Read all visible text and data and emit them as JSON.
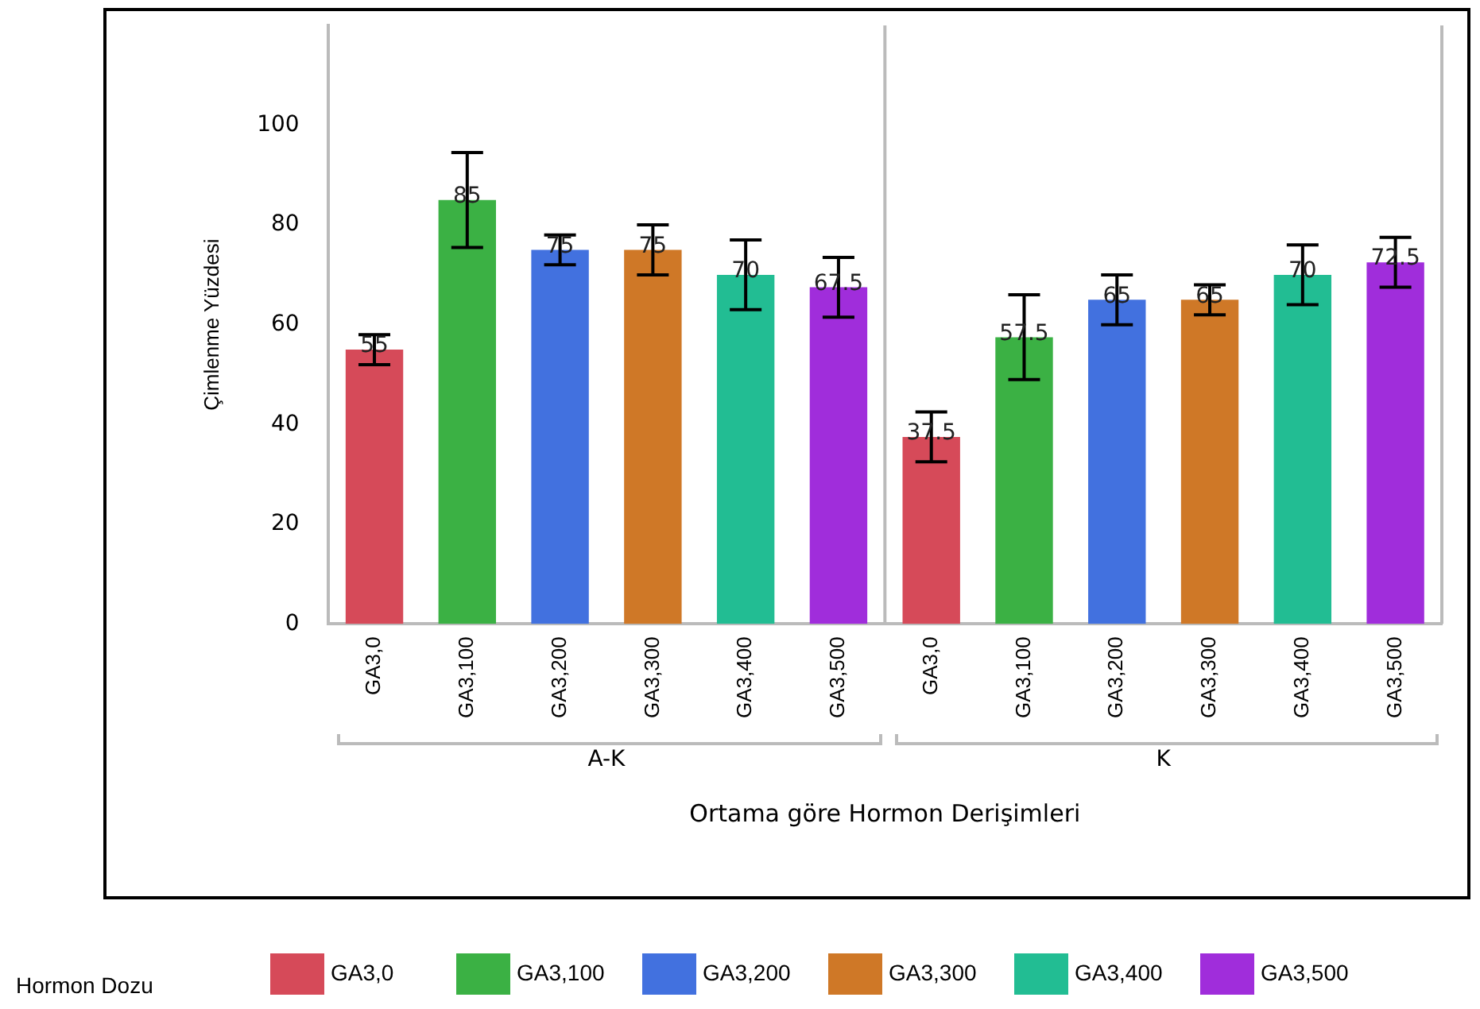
{
  "chart_data": {
    "type": "bar",
    "xlabel": "Ortama göre Hormon Derişimleri",
    "ylabel": "Çimlenme Yüzdesi",
    "legend_title": "Hormon Dozu",
    "legend": "bottom",
    "grid": false,
    "data_labels": true,
    "categories": [
      "GA3,0",
      "GA3,100",
      "GA3,200",
      "GA3,300",
      "GA3,400",
      "GA3,500",
      "GA3,0",
      "GA3,100",
      "GA3,200",
      "GA3,300",
      "GA3,400",
      "GA3,500"
    ],
    "annotations": [
      "A-K",
      "K"
    ],
    "ylim": [
      0,
      120
    ],
    "yticks": [
      0,
      20,
      40,
      60,
      80,
      100
    ],
    "series": [
      {
        "name": "GA3,0",
        "color": "#d64a59",
        "values": [
          55,
          null,
          null,
          null,
          null,
          null,
          37.5,
          null,
          null,
          null,
          null,
          null
        ],
        "errors": [
          3,
          null,
          null,
          null,
          null,
          null,
          5,
          null,
          null,
          null,
          null,
          null
        ]
      },
      {
        "name": "GA3,100",
        "color": "#3bb144",
        "values": [
          null,
          85,
          null,
          null,
          null,
          null,
          null,
          57.5,
          null,
          null,
          null,
          null
        ],
        "errors": [
          null,
          9.5,
          null,
          null,
          null,
          null,
          null,
          8.5,
          null,
          null,
          null,
          null
        ]
      },
      {
        "name": "GA3,200",
        "color": "#4271df",
        "values": [
          null,
          null,
          75,
          null,
          null,
          null,
          null,
          null,
          65,
          null,
          null,
          null
        ],
        "errors": [
          null,
          null,
          3,
          null,
          null,
          null,
          null,
          null,
          5,
          null,
          null,
          null
        ]
      },
      {
        "name": "GA3,300",
        "color": "#cf7827",
        "values": [
          null,
          null,
          null,
          75,
          null,
          null,
          null,
          null,
          null,
          65,
          null,
          null
        ],
        "errors": [
          null,
          null,
          null,
          5,
          null,
          null,
          null,
          null,
          null,
          3,
          null,
          null
        ]
      },
      {
        "name": "GA3,400",
        "color": "#22bd93",
        "values": [
          null,
          null,
          null,
          null,
          70,
          null,
          null,
          null,
          null,
          null,
          70,
          null
        ],
        "errors": [
          null,
          null,
          null,
          null,
          7,
          null,
          null,
          null,
          null,
          null,
          6,
          null
        ]
      },
      {
        "name": "GA3,500",
        "color": "#a02ddb",
        "values": [
          null,
          null,
          null,
          null,
          null,
          67.5,
          null,
          null,
          null,
          null,
          null,
          72.5
        ],
        "errors": [
          null,
          null,
          null,
          null,
          null,
          6,
          null,
          null,
          null,
          null,
          null,
          5
        ]
      }
    ]
  }
}
